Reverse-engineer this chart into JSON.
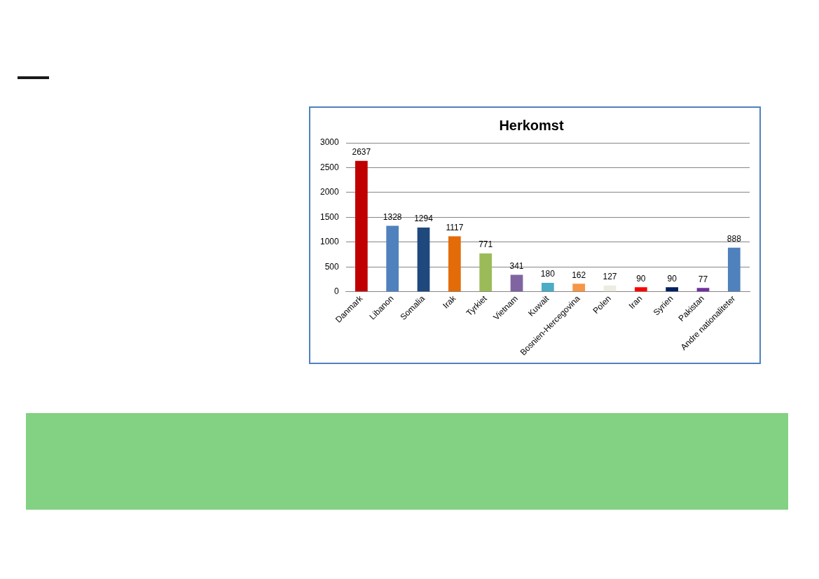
{
  "chart_data": {
    "type": "bar",
    "title": "Herkomst",
    "categories": [
      "Danmark",
      "Libanon",
      "Somalia",
      "Irak",
      "Tyrkiet",
      "Vietnam",
      "Kuwait",
      "Bosnien-Hercegovina",
      "Polen",
      "Iran",
      "Syrien",
      "Pakistan",
      "Andre nationaliteter"
    ],
    "values": [
      2637,
      1328,
      1294,
      1117,
      771,
      341,
      180,
      162,
      127,
      90,
      90,
      77,
      888
    ],
    "colors": [
      "#c00000",
      "#4f81bd",
      "#1f497d",
      "#e36c09",
      "#9bbb59",
      "#8064a2",
      "#4bacc6",
      "#f79646",
      "#eeece1",
      "#ff0000",
      "#002060",
      "#7030a0",
      "#4f81bd"
    ],
    "ylim": [
      0,
      3000
    ],
    "yticks": [
      0,
      500,
      1000,
      1500,
      2000,
      2500,
      3000
    ],
    "grid": "y",
    "data_labels": true,
    "legend": false
  }
}
